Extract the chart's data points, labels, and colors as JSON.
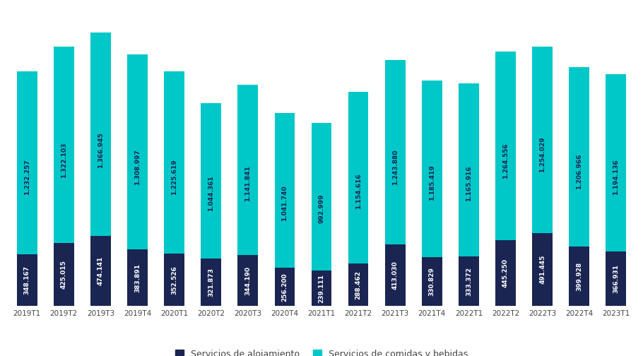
{
  "categories": [
    "2019T1",
    "2019T2",
    "2019T3",
    "2019T4",
    "2020T1",
    "2020T2",
    "2020T3",
    "2020T4",
    "2021T1",
    "2021T2",
    "2021T3",
    "2021T4",
    "2022T1",
    "2022T2",
    "2022T3",
    "2022T4",
    "2023T1"
  ],
  "alojamiento": [
    348167,
    425015,
    474141,
    383891,
    352526,
    321873,
    344190,
    256200,
    239111,
    288462,
    413030,
    330829,
    333372,
    445250,
    491445,
    399928,
    366931
  ],
  "comidas": [
    1232257,
    1322103,
    1366945,
    1308997,
    1225619,
    1044361,
    1141841,
    1041740,
    992999,
    1154616,
    1243880,
    1185419,
    1165916,
    1264556,
    1254029,
    1206966,
    1194136
  ],
  "alojamiento_labels": [
    "348.167",
    "425.015",
    "474.141",
    "383.891",
    "352.526",
    "321.873",
    "344.190",
    "256.200",
    "239.111",
    "288.462",
    "413.030",
    "330.829",
    "333.372",
    "445.250",
    "491.445",
    "399.928",
    "366.931"
  ],
  "comidas_labels": [
    "1.232.257",
    "1.322.103",
    "1.366.945",
    "1.308.997",
    "1.225.619",
    "1.044.361",
    "1.141.841",
    "1.041.740",
    "992.999",
    "1.154.616",
    "1.243.880",
    "1.185.419",
    "1.165.916",
    "1.264.556",
    "1.254.029",
    "1.206.966",
    "1.194.136"
  ],
  "color_alojamiento": "#1a2552",
  "color_comidas": "#00c8c8",
  "background_color": "#ffffff",
  "grid_color": "#d0d0d0",
  "legend_alojamiento": "Servicios de alojamiento",
  "legend_comidas": "Servicios de comidas y bebidas",
  "label_color_on_teal": "#1a2552",
  "label_color_on_navy": "#ffffff",
  "bar_width": 0.55,
  "label_fontsize": 6.5,
  "legend_fontsize": 9,
  "tick_fontsize": 7.5,
  "tick_color": "#444444"
}
